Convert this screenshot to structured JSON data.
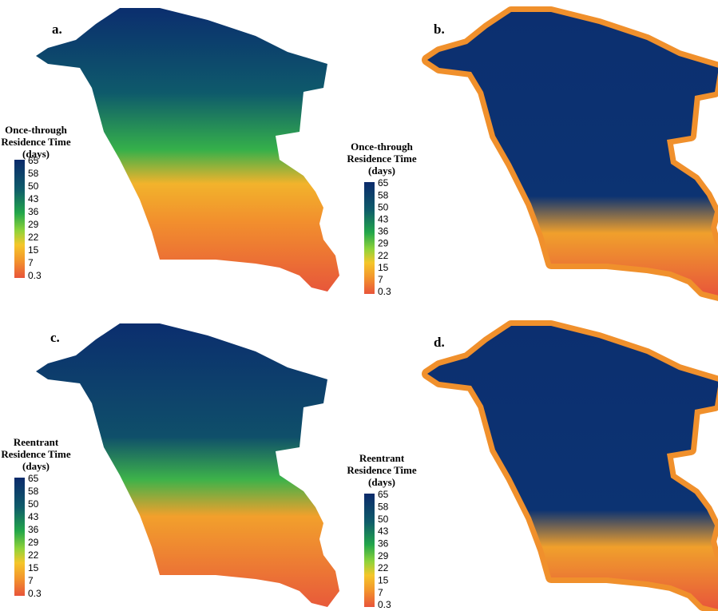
{
  "panels": [
    {
      "label": "a.",
      "legend_title": [
        "Once-through",
        "Residence Time",
        "(days)"
      ],
      "colorbar_ticks": [
        65,
        58,
        50,
        43,
        36,
        29,
        22,
        15,
        7,
        0.3
      ]
    },
    {
      "label": "b.",
      "legend_title": [
        "Once-through",
        "Residence Time",
        "(days)"
      ],
      "colorbar_ticks": [
        65,
        58,
        50,
        43,
        36,
        29,
        22,
        15,
        7,
        0.3
      ]
    },
    {
      "label": "c.",
      "legend_title": [
        "Reentrant",
        "Residence Time",
        "(days)"
      ],
      "colorbar_ticks": [
        65,
        58,
        50,
        43,
        36,
        29,
        22,
        15,
        7,
        0.3
      ]
    },
    {
      "label": "d.",
      "legend_title": [
        "Reentrant",
        "Residence Time",
        "(days)"
      ],
      "colorbar_ticks": [
        65,
        58,
        50,
        43,
        36,
        29,
        22,
        15,
        7,
        0.3
      ]
    }
  ]
}
